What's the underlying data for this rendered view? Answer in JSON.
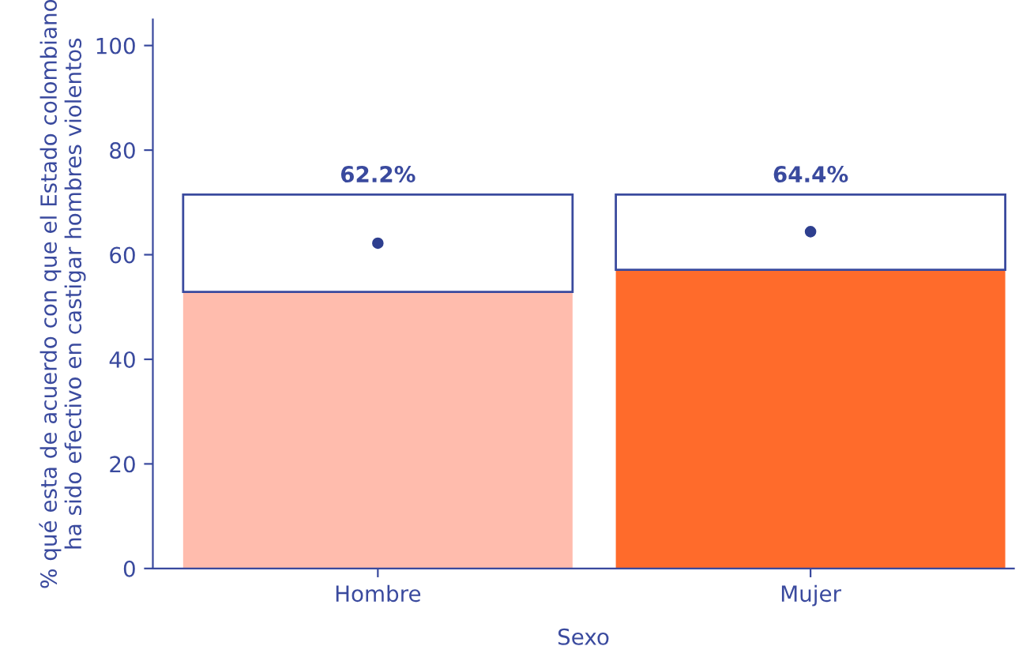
{
  "chart_data": {
    "type": "bar",
    "categories": [
      "Hombre",
      "Mujer"
    ],
    "xlabel": "Sexo",
    "ylabel": "% qué esta de acuerdo con que el Estado colombiano\nha sido efectivo en castigar hombres violentos",
    "stacked": true,
    "series": [
      {
        "colors": [
          "#ffbcad",
          "#ff6b2b"
        ],
        "values": [
          52.9,
          57.1
        ]
      },
      {
        "color": "#ffffff",
        "values": [
          18.6,
          14.4
        ]
      },
      {
        "type": "scatter",
        "color": "#2e3f8f",
        "values": [
          62.2,
          64.4
        ],
        "value_labels": [
          "62.2%",
          "64.4%"
        ]
      }
    ],
    "ylim": [
      0,
      105
    ],
    "yticks": [
      0,
      20,
      40,
      60,
      80,
      100
    ],
    "grid": false
  }
}
